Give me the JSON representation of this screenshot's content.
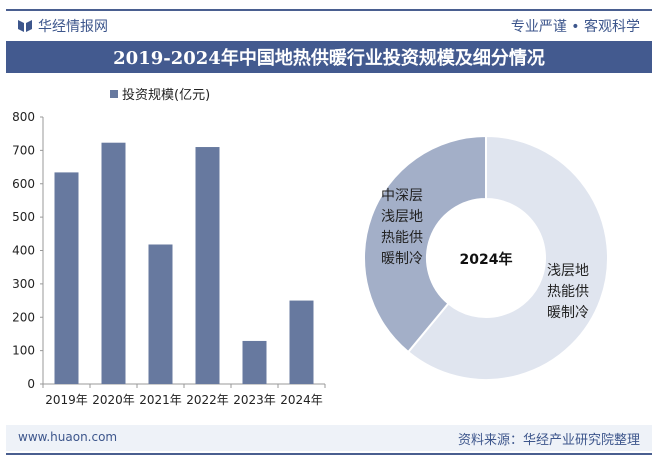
{
  "header": {
    "brand": "华经情报网",
    "slogan": "专业严谨 • 客观科学"
  },
  "title": "2019-2024年中国地热供暖行业投资规模及细分情况",
  "footer": {
    "website": "www.huaon.com",
    "source": "资料来源：华经产业研究院整理"
  },
  "colors": {
    "bar": "#67799f",
    "banner": "#435a8f",
    "donut_light": "#e0e5ef",
    "donut_dark": "#a3afc8"
  },
  "chart_data": [
    {
      "type": "bar",
      "legend": "投资规模(亿元)",
      "categories": [
        "2019年",
        "2020年",
        "2021年",
        "2022年",
        "2023年",
        "2024年"
      ],
      "values": [
        634,
        723,
        418,
        710,
        129,
        250
      ],
      "ylim": [
        0,
        800
      ],
      "yticks": [
        0,
        100,
        200,
        300,
        400,
        500,
        600,
        700,
        800
      ],
      "grid": false,
      "legend_position": "top"
    },
    {
      "type": "pie",
      "donut": true,
      "center_label": "2024年",
      "slices": [
        {
          "label": "浅层地热能供暖制冷",
          "value": 61
        },
        {
          "label": "中深层浅层地热能供暖制冷",
          "value": 39
        }
      ]
    }
  ]
}
